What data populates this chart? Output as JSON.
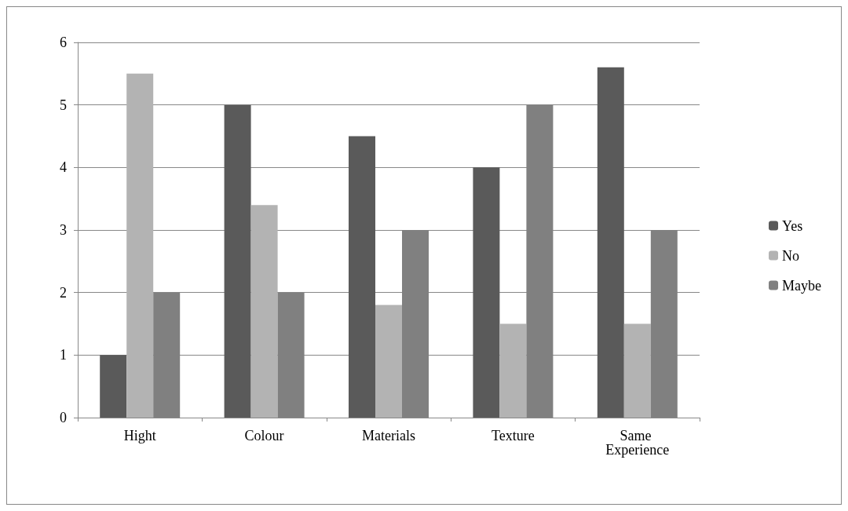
{
  "chart_data": {
    "type": "bar",
    "categories": [
      "Hight",
      "Colour",
      "Materials",
      "Texture",
      "Same Experience"
    ],
    "series": [
      {
        "name": "Yes",
        "color": "#5a5a5a",
        "values": [
          1,
          5,
          4.5,
          4,
          5.6
        ]
      },
      {
        "name": "No",
        "color": "#b3b3b3",
        "values": [
          5.5,
          3.4,
          1.8,
          1.5,
          1.5
        ]
      },
      {
        "name": "Maybe",
        "color": "#808080",
        "values": [
          2,
          2,
          3,
          5,
          3
        ]
      }
    ],
    "ylim": [
      0,
      6
    ],
    "yticks": [
      0,
      1,
      2,
      3,
      4,
      5,
      6
    ],
    "grid": "y",
    "legend": "right"
  }
}
